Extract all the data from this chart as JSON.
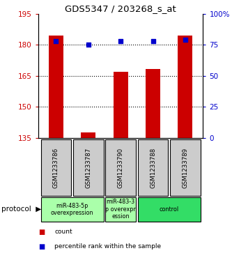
{
  "title": "GDS5347 / 203268_s_at",
  "samples": [
    "GSM1233786",
    "GSM1233787",
    "GSM1233790",
    "GSM1233788",
    "GSM1233789"
  ],
  "bar_values": [
    184.5,
    137.5,
    167.0,
    168.5,
    184.5
  ],
  "percentile_values": [
    78,
    75,
    78,
    78,
    79
  ],
  "ylim_left": [
    135,
    195
  ],
  "ylim_right": [
    0,
    100
  ],
  "yticks_left": [
    135,
    150,
    165,
    180,
    195
  ],
  "yticks_right": [
    0,
    25,
    50,
    75,
    100
  ],
  "ytick_labels_right": [
    "0",
    "25",
    "50",
    "75",
    "100%"
  ],
  "bar_color": "#cc0000",
  "dot_color": "#0000cc",
  "gridline_values": [
    150,
    165,
    180
  ],
  "group_configs": [
    {
      "indices": [
        0,
        1
      ],
      "label": "miR-483-5p\noverexpression",
      "color": "#aaffaa"
    },
    {
      "indices": [
        2
      ],
      "label": "miR-483-3\np overexpr\nession",
      "color": "#aaffaa"
    },
    {
      "indices": [
        3,
        4
      ],
      "label": "control",
      "color": "#33dd66"
    }
  ],
  "legend_items": [
    {
      "color": "#cc0000",
      "label": "count"
    },
    {
      "color": "#0000cc",
      "label": "percentile rank within the sample"
    }
  ],
  "background_color": "#ffffff",
  "plot_bg_color": "#ffffff",
  "sample_box_color": "#cccccc"
}
